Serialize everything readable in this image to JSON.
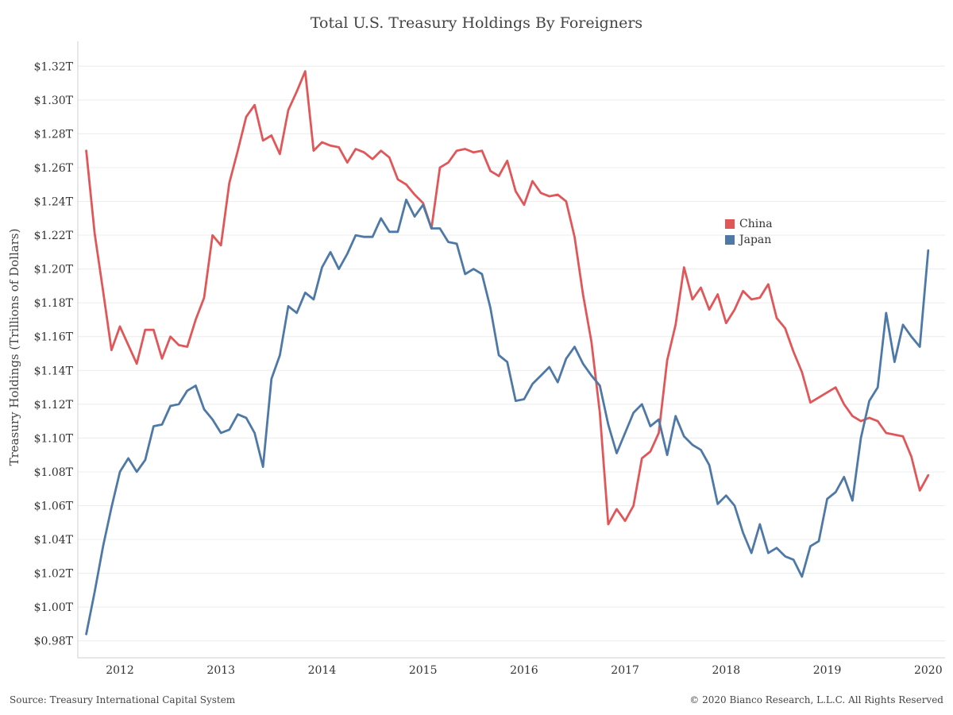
{
  "title": "Total U.S. Treasury Holdings By Foreigners",
  "source": "Source: Treasury International Capital System",
  "copyright": "© 2020 Bianco Research, L.L.C. All Rights Reserved",
  "legend": [
    {
      "label": "China",
      "color": "#e15759"
    },
    {
      "label": "Japan",
      "color": "#4e79a7"
    }
  ],
  "chart_data": {
    "type": "line",
    "title": "Total U.S. Treasury Holdings By Foreigners",
    "xlabel": "",
    "ylabel": "Treasury Holdings (Trillions of Dollars)",
    "ylim": [
      0.97,
      1.33
    ],
    "yticks": [
      0.98,
      1.0,
      1.02,
      1.04,
      1.06,
      1.08,
      1.1,
      1.12,
      1.14,
      1.16,
      1.18,
      1.2,
      1.22,
      1.24,
      1.26,
      1.28,
      1.3,
      1.32
    ],
    "ytick_labels": [
      "$0.98T",
      "$1.00T",
      "$1.02T",
      "$1.04T",
      "$1.06T",
      "$1.08T",
      "$1.10T",
      "$1.12T",
      "$1.14T",
      "$1.16T",
      "$1.18T",
      "$1.20T",
      "$1.22T",
      "$1.24T",
      "$1.26T",
      "$1.28T",
      "$1.30T",
      "$1.32T"
    ],
    "xlim": [
      "2011-08",
      "2020-03"
    ],
    "xticks": [
      "2012",
      "2013",
      "2014",
      "2015",
      "2016",
      "2017",
      "2018",
      "2019",
      "2020"
    ],
    "grid": true,
    "legend_position": "center-right",
    "x": [
      "2011-09",
      "2011-10",
      "2011-11",
      "2011-12",
      "2012-01",
      "2012-02",
      "2012-03",
      "2012-04",
      "2012-05",
      "2012-06",
      "2012-07",
      "2012-08",
      "2012-09",
      "2012-10",
      "2012-11",
      "2012-12",
      "2013-01",
      "2013-02",
      "2013-03",
      "2013-04",
      "2013-05",
      "2013-06",
      "2013-07",
      "2013-08",
      "2013-09",
      "2013-10",
      "2013-11",
      "2013-12",
      "2014-01",
      "2014-02",
      "2014-03",
      "2014-04",
      "2014-05",
      "2014-06",
      "2014-07",
      "2014-08",
      "2014-09",
      "2014-10",
      "2014-11",
      "2014-12",
      "2015-01",
      "2015-02",
      "2015-03",
      "2015-04",
      "2015-05",
      "2015-06",
      "2015-07",
      "2015-08",
      "2015-09",
      "2015-10",
      "2015-11",
      "2015-12",
      "2016-01",
      "2016-02",
      "2016-03",
      "2016-04",
      "2016-05",
      "2016-06",
      "2016-07",
      "2016-08",
      "2016-09",
      "2016-10",
      "2016-11",
      "2016-12",
      "2017-01",
      "2017-02",
      "2017-03",
      "2017-04",
      "2017-05",
      "2017-06",
      "2017-07",
      "2017-08",
      "2017-09",
      "2017-10",
      "2017-11",
      "2017-12",
      "2018-01",
      "2018-02",
      "2018-03",
      "2018-04",
      "2018-05",
      "2018-06",
      "2018-07",
      "2018-08",
      "2018-09",
      "2018-10",
      "2018-11",
      "2018-12",
      "2019-01",
      "2019-02",
      "2019-03",
      "2019-04",
      "2019-05",
      "2019-06",
      "2019-07",
      "2019-08",
      "2019-09",
      "2019-10",
      "2019-11",
      "2019-12",
      "2020-01"
    ],
    "series": [
      {
        "name": "China",
        "color": "#e15759",
        "values": [
          1.27,
          1.221,
          1.187,
          1.152,
          1.166,
          1.155,
          1.144,
          1.164,
          1.164,
          1.147,
          1.16,
          1.155,
          1.154,
          1.17,
          1.183,
          1.22,
          1.214,
          1.251,
          1.27,
          1.29,
          1.297,
          1.276,
          1.279,
          1.268,
          1.294,
          1.305,
          1.317,
          1.27,
          1.275,
          1.273,
          1.272,
          1.263,
          1.271,
          1.269,
          1.265,
          1.27,
          1.266,
          1.253,
          1.25,
          1.244,
          1.239,
          1.224,
          1.26,
          1.263,
          1.27,
          1.271,
          1.269,
          1.27,
          1.258,
          1.255,
          1.264,
          1.246,
          1.238,
          1.252,
          1.245,
          1.243,
          1.244,
          1.24,
          1.219,
          1.185,
          1.157,
          1.115,
          1.049,
          1.058,
          1.051,
          1.06,
          1.088,
          1.092,
          1.103,
          1.146,
          1.167,
          1.201,
          1.182,
          1.189,
          1.176,
          1.185,
          1.168,
          1.176,
          1.187,
          1.182,
          1.183,
          1.191,
          1.171,
          1.165,
          1.151,
          1.139,
          1.121,
          1.124,
          1.127,
          1.13,
          1.12,
          1.113,
          1.11,
          1.112,
          1.11,
          1.103,
          1.102,
          1.101,
          1.089,
          1.069,
          1.078
        ]
      },
      {
        "name": "Japan",
        "color": "#4e79a7",
        "values": [
          0.984,
          1.009,
          1.036,
          1.059,
          1.08,
          1.088,
          1.08,
          1.087,
          1.107,
          1.108,
          1.119,
          1.12,
          1.128,
          1.131,
          1.117,
          1.111,
          1.103,
          1.105,
          1.114,
          1.112,
          1.103,
          1.083,
          1.135,
          1.149,
          1.178,
          1.174,
          1.186,
          1.182,
          1.201,
          1.21,
          1.2,
          1.209,
          1.22,
          1.219,
          1.219,
          1.23,
          1.222,
          1.222,
          1.241,
          1.231,
          1.238,
          1.224,
          1.224,
          1.216,
          1.215,
          1.197,
          1.2,
          1.197,
          1.177,
          1.149,
          1.145,
          1.122,
          1.123,
          1.132,
          1.137,
          1.142,
          1.133,
          1.147,
          1.154,
          1.144,
          1.137,
          1.131,
          1.108,
          1.091,
          1.103,
          1.115,
          1.12,
          1.107,
          1.111,
          1.09,
          1.113,
          1.101,
          1.096,
          1.093,
          1.084,
          1.061,
          1.066,
          1.06,
          1.044,
          1.032,
          1.049,
          1.032,
          1.035,
          1.03,
          1.028,
          1.018,
          1.036,
          1.039,
          1.064,
          1.068,
          1.077,
          1.063,
          1.1,
          1.122,
          1.13,
          1.174,
          1.145,
          1.167,
          1.16,
          1.154,
          1.211
        ]
      }
    ]
  }
}
